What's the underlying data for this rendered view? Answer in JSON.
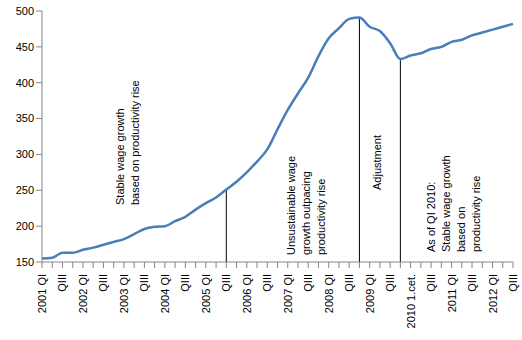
{
  "chart_data": {
    "type": "line",
    "categories": [
      "2001 QI",
      null,
      "QIII",
      null,
      "2002 QI",
      null,
      "QIII",
      null,
      "2003 QI",
      null,
      "QIII",
      null,
      "2004 QI",
      null,
      "QIII",
      null,
      "2005 QI",
      null,
      "QIII",
      null,
      "2006 QI",
      null,
      "QIII",
      null,
      "2007 QI",
      null,
      "QIII",
      null,
      "2008 QI",
      null,
      "QIII",
      null,
      "2009 QI",
      null,
      "QIII",
      null,
      "2010 1.cet.",
      null,
      "QIII",
      null,
      "2011 QI",
      null,
      "QIII",
      null,
      "2012 QI",
      null,
      "QIII"
    ],
    "values": [
      155,
      156,
      163,
      163,
      167,
      170,
      174,
      178,
      182,
      189,
      196,
      199,
      200,
      207,
      213,
      223,
      232,
      240,
      251,
      262,
      275,
      290,
      307,
      335,
      362,
      385,
      407,
      437,
      462,
      476,
      489,
      491,
      478,
      472,
      455,
      433,
      438,
      441,
      447,
      450,
      457,
      460,
      466,
      470,
      474,
      478,
      482
    ],
    "color": "#4a7ebb",
    "ylim": [
      150,
      500
    ],
    "yticks": [
      150,
      200,
      250,
      300,
      350,
      400,
      450,
      500
    ],
    "grid": false,
    "dividers": [
      18,
      31,
      35
    ],
    "annotations": [
      {
        "lines": [
          "Stable wage growth",
          "based on productivity rise"
        ]
      },
      {
        "lines": [
          "Unsustainable wage",
          "growth outpacing",
          "productivity rise"
        ]
      },
      {
        "lines": [
          "Adjustment"
        ]
      },
      {
        "lines": [
          "As of QI 2010:",
          "Stable wage growth",
          "based on",
          "productivity rise"
        ]
      }
    ]
  }
}
